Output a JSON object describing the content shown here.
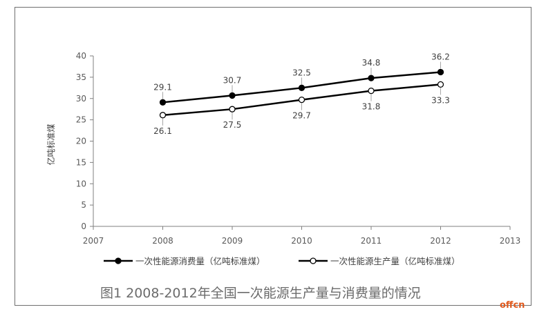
{
  "caption": "图1 2008-2012年全国一次能源生产量与消费量的情况",
  "watermark": "offcn",
  "colors": {
    "series_line": "#000000",
    "axis": "#7f7f7f",
    "leader": "#a6a6a6"
  },
  "chart_data": {
    "type": "line",
    "title": "",
    "xlabel": "",
    "ylabel": "亿吨标准煤",
    "xlim": [
      2007,
      2013
    ],
    "ylim": [
      0,
      40
    ],
    "x_ticks": [
      2007,
      2008,
      2009,
      2010,
      2011,
      2012,
      2013
    ],
    "y_ticks": [
      0,
      5,
      10,
      15,
      20,
      25,
      30,
      35,
      40
    ],
    "grid": false,
    "legend_position": "bottom",
    "x": [
      2008,
      2009,
      2010,
      2011,
      2012
    ],
    "series": [
      {
        "name": "一次性能源消费量（亿吨标准煤）",
        "marker": "filled-circle",
        "values": [
          29.1,
          30.7,
          32.5,
          34.8,
          36.2
        ],
        "labels": [
          "29.1",
          "30.7",
          "32.5",
          "34.8",
          "36.2"
        ]
      },
      {
        "name": "一次性能源生产量（亿吨标准煤）",
        "marker": "open-circle",
        "values": [
          26.1,
          27.5,
          29.7,
          31.8,
          33.3
        ],
        "labels": [
          "26.1",
          "27.5",
          "29.7",
          "31.8",
          "33.3"
        ]
      }
    ]
  }
}
